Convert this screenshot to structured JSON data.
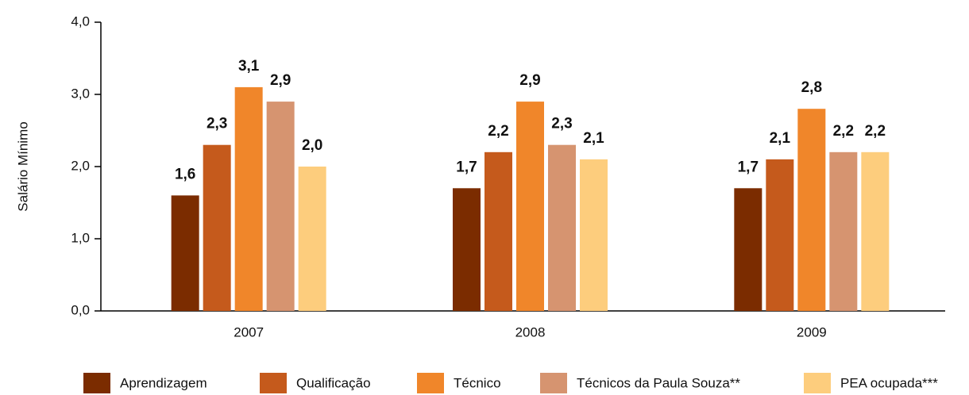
{
  "chart_data": {
    "type": "bar",
    "y_label": "Salário Mínimo",
    "categories": [
      "2007",
      "2008",
      "2009"
    ],
    "series": [
      {
        "name": "Aprendizagem",
        "color": "#7b2c00",
        "values": [
          1.6,
          1.7,
          1.7
        ],
        "value_labels": [
          "1,6",
          "1,7",
          "1,7"
        ]
      },
      {
        "name": "Qualificação",
        "color": "#c55a1c",
        "values": [
          2.3,
          2.2,
          2.1
        ],
        "value_labels": [
          "2,3",
          "2,2",
          "2,1"
        ]
      },
      {
        "name": "Técnico",
        "color": "#f0862a",
        "values": [
          3.1,
          2.9,
          2.8
        ],
        "value_labels": [
          "3,1",
          "2,9",
          "2,8"
        ]
      },
      {
        "name": "Técnicos da Paula Souza**",
        "color": "#d69470",
        "values": [
          2.9,
          2.3,
          2.2
        ],
        "value_labels": [
          "2,9",
          "2,3",
          "2,2"
        ]
      },
      {
        "name": "PEA ocupada***",
        "color": "#fdcd7d",
        "values": [
          2.0,
          2.1,
          2.2
        ],
        "value_labels": [
          "2,0",
          "2,1",
          "2,2"
        ]
      }
    ],
    "ylim": [
      0,
      4
    ],
    "yticks": [
      {
        "value": 0,
        "label": "0,0"
      },
      {
        "value": 1,
        "label": "1,0"
      },
      {
        "value": 2,
        "label": "2,0"
      },
      {
        "value": 3,
        "label": "3,0"
      },
      {
        "value": 4,
        "label": "4,0"
      }
    ],
    "grid": false,
    "legend": "bottom"
  }
}
